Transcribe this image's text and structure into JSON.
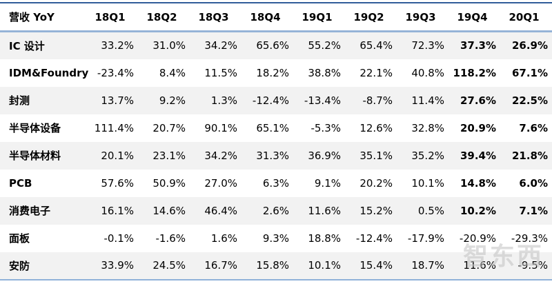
{
  "table": {
    "header": [
      "营收 YoY",
      "18Q1",
      "18Q2",
      "18Q3",
      "18Q4",
      "19Q1",
      "19Q2",
      "19Q3",
      "19Q4",
      "20Q1"
    ],
    "rows": [
      {
        "label": "IC 设计",
        "values": [
          "33.2%",
          "31.0%",
          "34.2%",
          "65.6%",
          "55.2%",
          "65.4%",
          "72.3%",
          "37.3%",
          "26.9%"
        ],
        "bold_last2": true
      },
      {
        "label": "IDM&Foundry",
        "values": [
          "-23.4%",
          "8.4%",
          "11.5%",
          "18.2%",
          "38.8%",
          "22.1%",
          "40.8%",
          "118.2%",
          "67.1%"
        ],
        "bold_last2": true
      },
      {
        "label": "封测",
        "values": [
          "13.7%",
          "9.2%",
          "1.3%",
          "-12.4%",
          "-13.4%",
          "-8.7%",
          "11.4%",
          "27.6%",
          "22.5%"
        ],
        "bold_last2": true
      },
      {
        "label": "半导体设备",
        "values": [
          "111.4%",
          "20.7%",
          "90.1%",
          "65.1%",
          "-5.3%",
          "12.6%",
          "32.8%",
          "20.9%",
          "7.6%"
        ],
        "bold_last2": true
      },
      {
        "label": "半导体材料",
        "values": [
          "20.1%",
          "23.1%",
          "34.2%",
          "31.3%",
          "36.9%",
          "35.1%",
          "35.2%",
          "39.4%",
          "21.8%"
        ],
        "bold_last2": true
      },
      {
        "label": "PCB",
        "values": [
          "57.6%",
          "50.9%",
          "27.0%",
          "6.3%",
          "9.1%",
          "20.2%",
          "10.1%",
          "14.8%",
          "6.0%"
        ],
        "bold_last2": true
      },
      {
        "label": "消费电子",
        "values": [
          "16.1%",
          "14.6%",
          "46.4%",
          "2.6%",
          "11.6%",
          "15.2%",
          "0.5%",
          "10.2%",
          "7.1%"
        ],
        "bold_last2": true
      },
      {
        "label": "面板",
        "values": [
          "-0.1%",
          "-1.6%",
          "1.6%",
          "9.3%",
          "18.8%",
          "-12.4%",
          "-17.9%",
          "-20.9%",
          "-29.3%"
        ],
        "bold_last2": false
      },
      {
        "label": "安防",
        "values": [
          "33.9%",
          "24.5%",
          "16.7%",
          "15.8%",
          "10.1%",
          "15.4%",
          "18.7%",
          "11.6%",
          "-9.5%"
        ],
        "bold_last2": false
      }
    ]
  },
  "watermark": {
    "text": "智东西"
  },
  "colors": {
    "top_border": "#2f5c99",
    "header_underline": "#95b3d7",
    "bottom_border": "#8fb1d9",
    "stripe": "#f2f2f2",
    "text": "#000000",
    "watermark": "#c2c2c2"
  }
}
